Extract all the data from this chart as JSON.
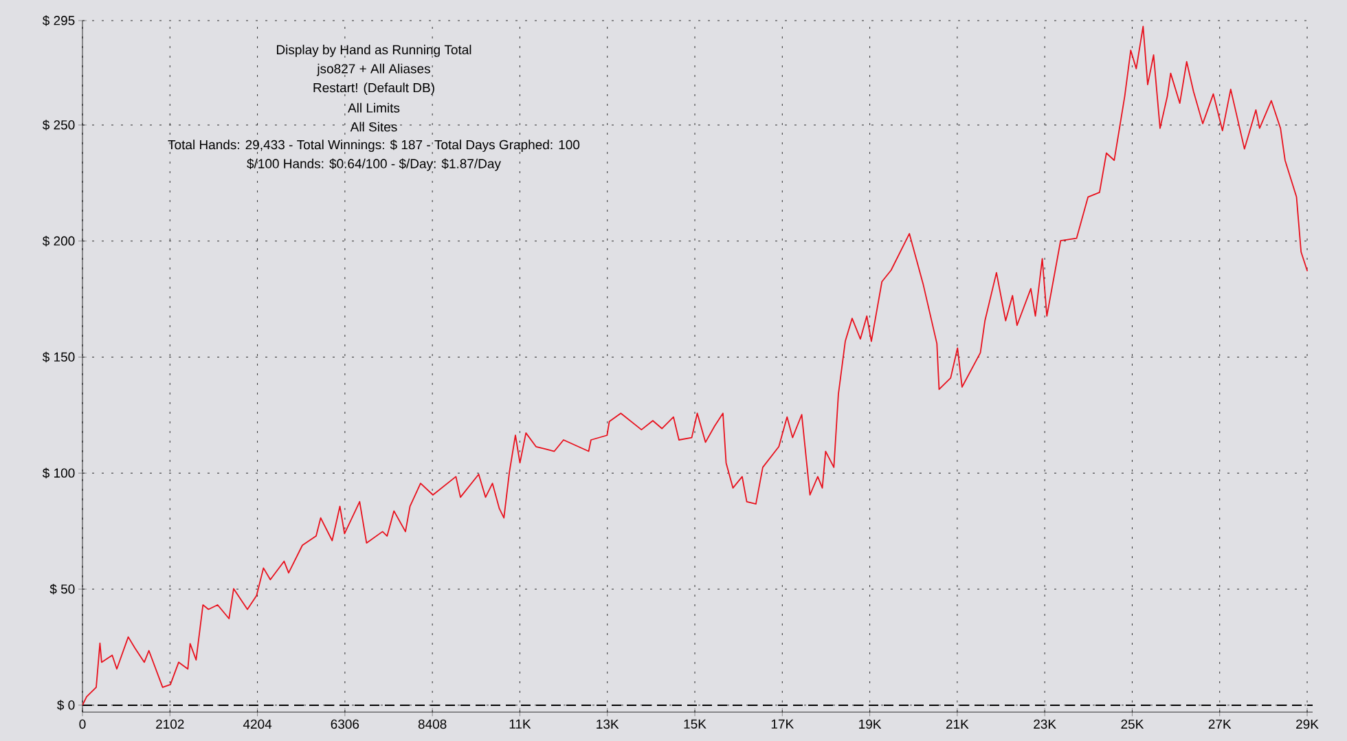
{
  "chart_data": {
    "type": "line",
    "title": "Display by Hand as Running Total",
    "annotations": [
      "jso827 + All Aliases",
      "Restart! (Default DB)",
      "All Limits",
      "All Sites",
      "Total Hands: 29,433 - Total Winnings: $ 187 - Total Days Graphed: 100",
      "$/100 Hands: $0.64/100 - $/Day: $1.87/Day"
    ],
    "x": [
      0,
      99,
      330,
      420,
      460,
      715,
      825,
      1100,
      1265,
      1486,
      1596,
      1926,
      2113,
      2312,
      2532,
      2587,
      2730,
      2895,
      3028,
      3247,
      3522,
      3633,
      3963,
      4183,
      4349,
      4514,
      4845,
      4954,
      5284,
      5614,
      5724,
      6000,
      6186,
      6297,
      6660,
      6826,
      7210,
      7320,
      7485,
      7761,
      7870,
      8124,
      8421,
      8973,
      9082,
      9521,
      9686,
      9852,
      10017,
      10127,
      10259,
      10403,
      10512,
      10656,
      10898,
      11120,
      11338,
      11559,
      12163,
      12219,
      12605,
      12659,
      12936,
      13432,
      13705,
      13926,
      14201,
      14333,
      14640,
      14773,
      14971,
      15191,
      15390,
      15466,
      15631,
      15852,
      15962,
      16182,
      16347,
      16733,
      16931,
      17063,
      17283,
      17481,
      17668,
      17778,
      17857,
      18055,
      18164,
      18329,
      18494,
      18692,
      18847,
      18956,
      19210,
      19429,
      19870,
      20200,
      20531,
      20584,
      20861,
      21026,
      21136,
      21576,
      21686,
      21962,
      22183,
      22348,
      22457,
      22788,
      22898,
      23063,
      23173,
      23504,
      23887,
      24163,
      24439,
      24604,
      24792,
      25044,
      25189,
      25321,
      25486,
      25596,
      25738,
      25893,
      26068,
      26148,
      26368,
      26533,
      26698,
      26919,
      27173,
      27393,
      27591,
      27921,
      28196,
      28285,
      28567,
      28787,
      28897,
      29172,
      29282,
      29433
    ],
    "values": [
      0,
      3.6,
      7.7,
      26.7,
      18.5,
      21.5,
      15.6,
      29.4,
      24.5,
      18.5,
      23.5,
      7.7,
      8.9,
      18.5,
      15.6,
      26.5,
      19.5,
      43.2,
      41.3,
      43.2,
      37.3,
      50.2,
      41.3,
      47.2,
      59.1,
      54.1,
      62,
      57,
      68.9,
      72.9,
      80.7,
      70.9,
      85.7,
      73.9,
      87.7,
      69.9,
      74.8,
      72.9,
      83.7,
      74.8,
      85.7,
      95.6,
      90.6,
      98.5,
      89.6,
      99.5,
      89.6,
      95.6,
      84.7,
      80.7,
      100.5,
      116.3,
      104.4,
      117.3,
      111.4,
      110.4,
      109.4,
      114.3,
      109.4,
      114.3,
      116.3,
      122.2,
      125.8,
      118.7,
      122.6,
      119.2,
      124.2,
      114.3,
      115.3,
      125.8,
      113.3,
      120.3,
      125.8,
      104.4,
      93.6,
      98.5,
      87.7,
      86.7,
      102.5,
      111.4,
      124.2,
      115.3,
      125.2,
      90.6,
      98.5,
      93.6,
      109.4,
      102.5,
      134,
      156.8,
      166.7,
      157.8,
      167.7,
      156.8,
      182.5,
      187.4,
      203.2,
      181.5,
      155.8,
      136.1,
      141,
      153.9,
      137.1,
      151.9,
      165.7,
      186.4,
      165.7,
      176.5,
      163.7,
      179.5,
      167.7,
      192.4,
      167.7,
      200.2,
      201.2,
      219,
      221,
      237.9,
      234.8,
      262.4,
      282.2,
      274.3,
      292.5,
      267.4,
      280.2,
      248.6,
      262.4,
      272.3,
      259.4,
      277.3,
      264.4,
      250.6,
      263.4,
      247.6,
      265.4,
      239.7,
      256.5,
      248.6,
      260.5,
      248.6,
      234.8,
      219,
      195.3,
      187
    ],
    "color": "#e8101c",
    "xlim": [
      0,
      29560
    ],
    "ylim": [
      -3,
      295
    ],
    "xticks": [
      0,
      2102,
      4204,
      6306,
      8408,
      {
        "value": 10510,
        "label": "11K"
      },
      {
        "value": 12612,
        "label": "13K"
      },
      {
        "value": 14714,
        "label": "15K"
      },
      {
        "value": 16816,
        "label": "17K"
      },
      {
        "value": 18918,
        "label": "19K"
      },
      {
        "value": 21020,
        "label": "21K"
      },
      {
        "value": 23122,
        "label": "23K"
      },
      {
        "value": 25224,
        "label": "25K"
      },
      {
        "value": 27326,
        "label": "27K"
      },
      {
        "value": 29428,
        "label": "29K"
      }
    ],
    "yticks": [
      {
        "value": 0,
        "label": "$ 0"
      },
      {
        "value": 50,
        "label": "$ 50"
      },
      {
        "value": 100,
        "label": "$ 100"
      },
      {
        "value": 150,
        "label": "$ 150"
      },
      {
        "value": 200,
        "label": "$ 200"
      },
      {
        "value": 250,
        "label": "$ 250"
      },
      {
        "value": 295,
        "label": "$ 295"
      }
    ],
    "grid": true,
    "ref_lines": [
      {
        "axis": "y",
        "value": 0,
        "line_style": "dashed"
      }
    ]
  }
}
